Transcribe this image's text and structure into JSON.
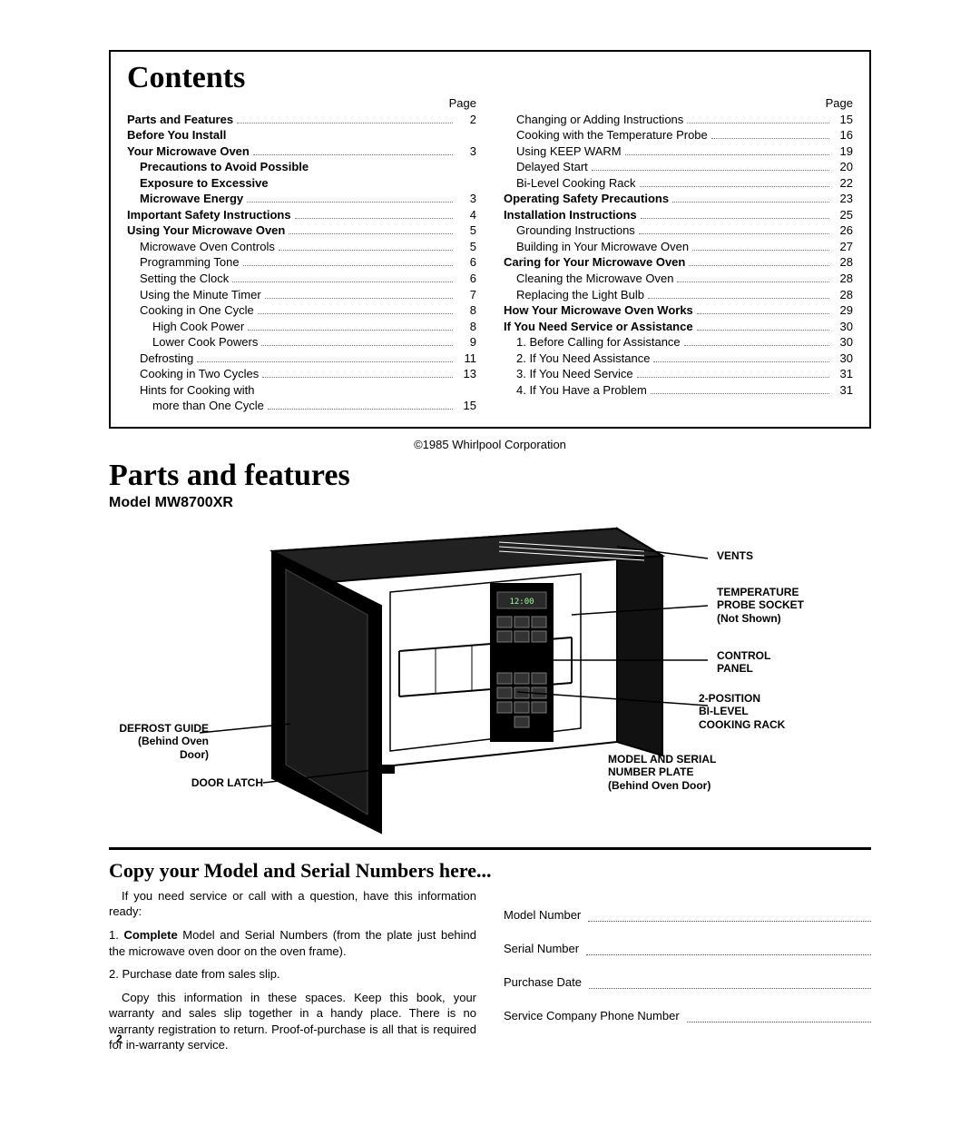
{
  "contents": {
    "title": "Contents",
    "page_label_left": "Page",
    "page_label_right": "Page",
    "left": [
      {
        "label": "Parts and Features",
        "page": "2",
        "bold": true,
        "indent": 0
      },
      {
        "label": "Before You Install",
        "page": "",
        "bold": true,
        "indent": 0
      },
      {
        "label": "Your Microwave Oven",
        "page": "3",
        "bold": true,
        "indent": 0
      },
      {
        "label": "Precautions to Avoid Possible",
        "page": "",
        "bold": true,
        "indent": 1
      },
      {
        "label": "Exposure to Excessive",
        "page": "",
        "bold": true,
        "indent": 1
      },
      {
        "label": "Microwave Energy",
        "page": "3",
        "bold": true,
        "indent": 1
      },
      {
        "label": "Important Safety Instructions",
        "page": "4",
        "bold": true,
        "indent": 0
      },
      {
        "label": "Using Your Microwave Oven",
        "page": "5",
        "bold": true,
        "indent": 0
      },
      {
        "label": "Microwave Oven Controls",
        "page": "5",
        "bold": false,
        "indent": 1
      },
      {
        "label": "Programming Tone",
        "page": "6",
        "bold": false,
        "indent": 1
      },
      {
        "label": "Setting the Clock",
        "page": "6",
        "bold": false,
        "indent": 1
      },
      {
        "label": "Using the Minute Timer",
        "page": "7",
        "bold": false,
        "indent": 1
      },
      {
        "label": "Cooking in One Cycle",
        "page": "8",
        "bold": false,
        "indent": 1
      },
      {
        "label": "High Cook Power",
        "page": "8",
        "bold": false,
        "indent": 2
      },
      {
        "label": "Lower Cook Powers",
        "page": "9",
        "bold": false,
        "indent": 2
      },
      {
        "label": "Defrosting",
        "page": "11",
        "bold": false,
        "indent": 1
      },
      {
        "label": "Cooking in Two Cycles",
        "page": "13",
        "bold": false,
        "indent": 1
      },
      {
        "label": "Hints for Cooking with",
        "page": "",
        "bold": false,
        "indent": 1
      },
      {
        "label": "more than One Cycle",
        "page": "15",
        "bold": false,
        "indent": 2
      }
    ],
    "right": [
      {
        "label": "Changing or Adding Instructions",
        "page": "15",
        "bold": false,
        "indent": 1
      },
      {
        "label": "Cooking with the Temperature Probe",
        "page": "16",
        "bold": false,
        "indent": 1
      },
      {
        "label": "Using KEEP WARM",
        "page": "19",
        "bold": false,
        "indent": 1
      },
      {
        "label": "Delayed Start",
        "page": "20",
        "bold": false,
        "indent": 1
      },
      {
        "label": "Bi-Level Cooking Rack",
        "page": "22",
        "bold": false,
        "indent": 1
      },
      {
        "label": "Operating Safety Precautions",
        "page": "23",
        "bold": true,
        "indent": 0
      },
      {
        "label": "Installation Instructions",
        "page": "25",
        "bold": true,
        "indent": 0
      },
      {
        "label": "Grounding Instructions",
        "page": "26",
        "bold": false,
        "indent": 1
      },
      {
        "label": "Building in Your Microwave Oven",
        "page": "27",
        "bold": false,
        "indent": 1
      },
      {
        "label": "Caring for Your Microwave Oven",
        "page": "28",
        "bold": true,
        "indent": 0
      },
      {
        "label": "Cleaning the Microwave Oven",
        "page": "28",
        "bold": false,
        "indent": 1
      },
      {
        "label": "Replacing the Light Bulb",
        "page": "28",
        "bold": false,
        "indent": 1
      },
      {
        "label": "How Your Microwave Oven Works",
        "page": "29",
        "bold": true,
        "indent": 0
      },
      {
        "label": "If You Need Service or Assistance",
        "page": "30",
        "bold": true,
        "indent": 0
      },
      {
        "label": "1. Before Calling for Assistance",
        "page": "30",
        "bold": false,
        "indent": 1
      },
      {
        "label": "2. If You Need Assistance",
        "page": "30",
        "bold": false,
        "indent": 1
      },
      {
        "label": "3. If You Need Service",
        "page": "31",
        "bold": false,
        "indent": 1
      },
      {
        "label": "4. If You Have a Problem",
        "page": "31",
        "bold": false,
        "indent": 1
      }
    ]
  },
  "copyright": "©1985 Whirlpool Corporation",
  "parts": {
    "title": "Parts and features",
    "model": "Model MW8700XR",
    "callouts": {
      "vents": "VENTS",
      "probe1": "TEMPERATURE",
      "probe2": "PROBE SOCKET",
      "probe3": "(Not Shown)",
      "control1": "CONTROL",
      "control2": "PANEL",
      "rack1": "2-POSITION",
      "rack2": "BI-LEVEL",
      "rack3": "COOKING RACK",
      "plate1": "MODEL AND SERIAL",
      "plate2": "NUMBER PLATE",
      "plate3": "(Behind Oven Door)",
      "defrost1": "DEFROST GUIDE",
      "defrost2": "(Behind Oven Door)",
      "latch": "DOOR LATCH"
    }
  },
  "copy": {
    "title": "Copy your Model and Serial Numbers here...",
    "p1": "If you need service or call with a question, have this information ready:",
    "p2a": "1. ",
    "p2b": "Complete",
    "p2c": " Model and Serial Numbers (from the plate just behind the microwave oven door on the oven frame).",
    "p3": "2. Purchase date from sales slip.",
    "p4": "Copy this information in these spaces. Keep this book, your warranty and sales slip together in a handy place. There is no warranty registration to return. Proof-of-purchase is all that is required for in-warranty service.",
    "fields": {
      "model": "Model Number",
      "serial": "Serial Number",
      "date": "Purchase Date",
      "phone": "Service Company Phone Number"
    }
  },
  "page_number": "2"
}
